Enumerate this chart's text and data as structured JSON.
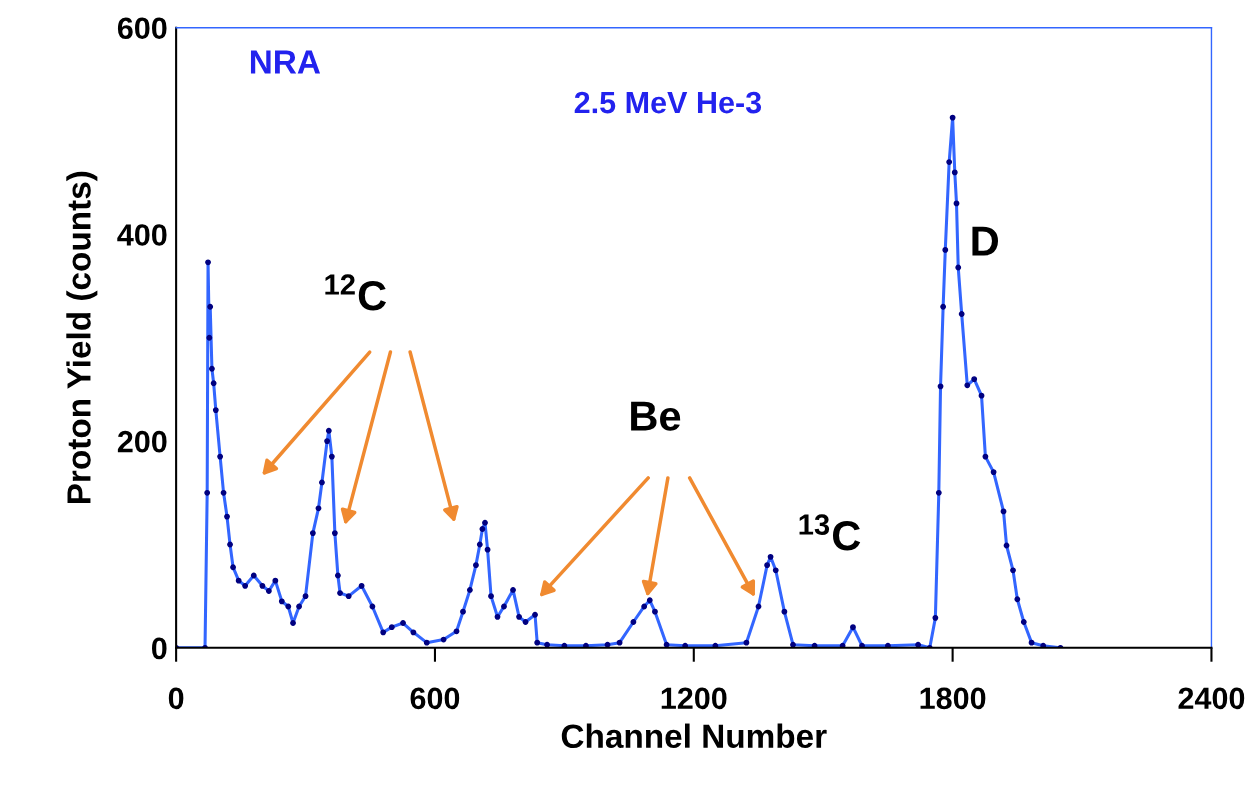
{
  "chart_data": {
    "type": "line",
    "xlabel": "Channel Number",
    "ylabel": "Proton Yield (counts)",
    "xlim": [
      0,
      2400
    ],
    "ylim": [
      0,
      600
    ],
    "xticks": [
      0,
      600,
      1200,
      1800,
      2400
    ],
    "yticks": [
      0,
      200,
      400,
      600
    ],
    "grid": false,
    "marker": "circle",
    "line_style": "solid",
    "series": [
      {
        "color": "#3366ff",
        "x": [
          0,
          67,
          72,
          74,
          77,
          79,
          83,
          87,
          92,
          102,
          110,
          118,
          125,
          132,
          145,
          160,
          180,
          200,
          215,
          230,
          245,
          260,
          271,
          285,
          300,
          317,
          330,
          338,
          350,
          354,
          361,
          368,
          375,
          380,
          400,
          430,
          455,
          480,
          500,
          526,
          550,
          581,
          620,
          650,
          665,
          681,
          695,
          704,
          710,
          716,
          722,
          730,
          745,
          760,
          781,
          795,
          810,
          832,
          837,
          860,
          900,
          950,
          1000,
          1028,
          1060,
          1085,
          1098,
          1110,
          1137,
          1180,
          1250,
          1322,
          1350,
          1370,
          1378,
          1390,
          1410,
          1430,
          1480,
          1545,
          1569,
          1590,
          1650,
          1720,
          1747,
          1760,
          1768,
          1772,
          1778,
          1783,
          1792,
          1800,
          1805,
          1809,
          1813,
          1821,
          1834,
          1850,
          1867,
          1876,
          1895,
          1918,
          1925,
          1940,
          1950,
          1965,
          1983,
          2010,
          2050
        ],
        "values": [
          0,
          0,
          150,
          373,
          300,
          330,
          270,
          256,
          230,
          185,
          150,
          127,
          100,
          78,
          65,
          60,
          70,
          60,
          55,
          65,
          45,
          40,
          24,
          40,
          50,
          111,
          135,
          160,
          200,
          210,
          185,
          111,
          70,
          53,
          50,
          60,
          40,
          15,
          20,
          24,
          15,
          5,
          8,
          16,
          35,
          56,
          80,
          100,
          115,
          121,
          95,
          50,
          30,
          40,
          56,
          30,
          25,
          32,
          5,
          3,
          2,
          2,
          3,
          5,
          25,
          40,
          46,
          35,
          3,
          2,
          2,
          5,
          40,
          80,
          88,
          75,
          35,
          3,
          2,
          2,
          20,
          2,
          2,
          3,
          0,
          29,
          150,
          253,
          330,
          385,
          470,
          513,
          460,
          430,
          368,
          323,
          254,
          260,
          244,
          185,
          170,
          132,
          99,
          75,
          47,
          25,
          5,
          2,
          0
        ]
      }
    ],
    "annotations": [
      "NRA",
      "2.5 MeV He-3",
      "$^{12}$C",
      "Be",
      "$^{13}$C",
      "D"
    ]
  }
}
